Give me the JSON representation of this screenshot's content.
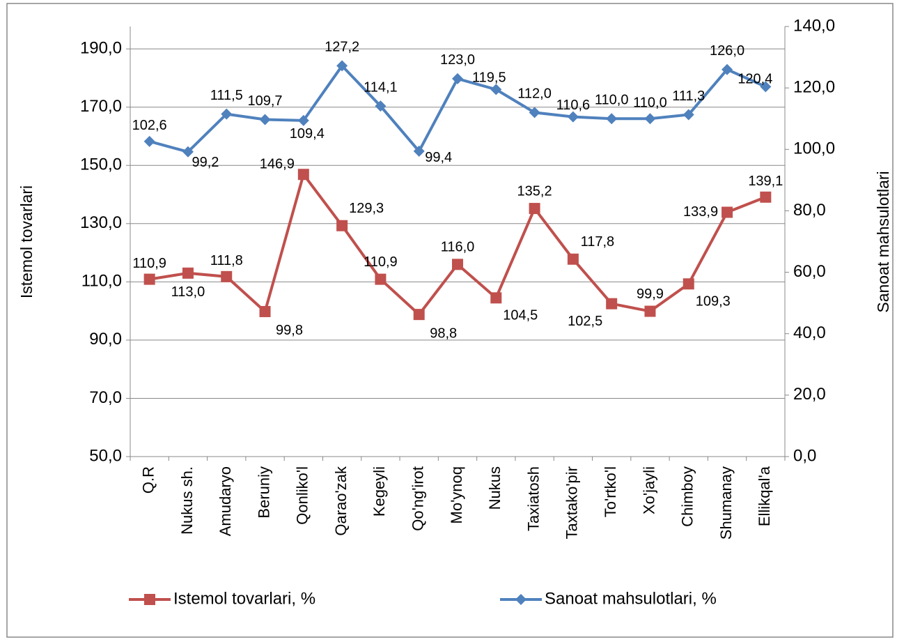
{
  "chart_data": {
    "type": "line",
    "categories": [
      "Q.R",
      "Nukus sh.",
      "Amudaryo",
      "Beruniy",
      "Qonliko'l",
      "Qarao'zak",
      "Kegeyli",
      "Qo'ng'irot",
      "Mo'ynoq",
      "Nukus",
      "Taxiatosh",
      "Taxtako'pir",
      "To'rtko'l",
      "Xo'jayli",
      "Chimboy",
      "Shumanay",
      "Ellikqal'a"
    ],
    "series": [
      {
        "name": "Istemol tovarlari, %",
        "color": "#c0504d",
        "marker": "square",
        "values": [
          110.9,
          113.0,
          111.8,
          99.8,
          146.9,
          129.3,
          110.9,
          98.8,
          116.0,
          104.5,
          135.2,
          117.8,
          102.5,
          99.9,
          109.3,
          133.9,
          139.1
        ],
        "value_labels": [
          "110,9",
          "113,0",
          "111,8",
          "99,8",
          "146,9",
          "129,3",
          "110,9",
          "98,8",
          "116,0",
          "104,5",
          "135,2",
          "117,8",
          "102,5",
          "99,9",
          "109,3",
          "133,9",
          "139,1"
        ]
      },
      {
        "name": "Sanoat mahsulotlari, %",
        "color": "#4f81bd",
        "marker": "diamond",
        "axis": "y2",
        "values": [
          102.6,
          99.2,
          111.5,
          109.7,
          109.4,
          127.2,
          114.1,
          99.4,
          123.0,
          119.5,
          112.0,
          110.6,
          110.0,
          110.0,
          111.3,
          126.0,
          120.4
        ],
        "value_labels": [
          "102,6",
          "99,2",
          "111,5",
          "109,7",
          "109,4",
          "127,2",
          "114,1",
          "99,4",
          "123,0",
          "119,5",
          "112,0",
          "110,6",
          "110,0",
          "110,0",
          "111,3",
          "126,0",
          "120,4"
        ]
      }
    ],
    "y_label": "Istemol tovarlari",
    "y2_label": "Sanoat mahsulotlari",
    "ylim": [
      50,
      197.7
    ],
    "yticks": [
      {
        "value": 50,
        "label": "50,0"
      },
      {
        "value": 70,
        "label": "70,0"
      },
      {
        "value": 90,
        "label": "90,0"
      },
      {
        "value": 110,
        "label": "110,0"
      },
      {
        "value": 130,
        "label": "130,0"
      },
      {
        "value": 150,
        "label": "150,0"
      },
      {
        "value": 170,
        "label": "170,0"
      },
      {
        "value": 190,
        "label": "190,0"
      }
    ],
    "y2lim": [
      0,
      140
    ],
    "y2ticks": [
      {
        "value": 0,
        "label": "0,0"
      },
      {
        "value": 20,
        "label": "20,0"
      },
      {
        "value": 40,
        "label": "40,0"
      },
      {
        "value": 60,
        "label": "60,0"
      },
      {
        "value": 80,
        "label": "80,0"
      },
      {
        "value": 100,
        "label": "100,0"
      },
      {
        "value": 120,
        "label": "120,0"
      },
      {
        "value": 140,
        "label": "140,0"
      }
    ],
    "grid": true,
    "legend": "bottom"
  }
}
